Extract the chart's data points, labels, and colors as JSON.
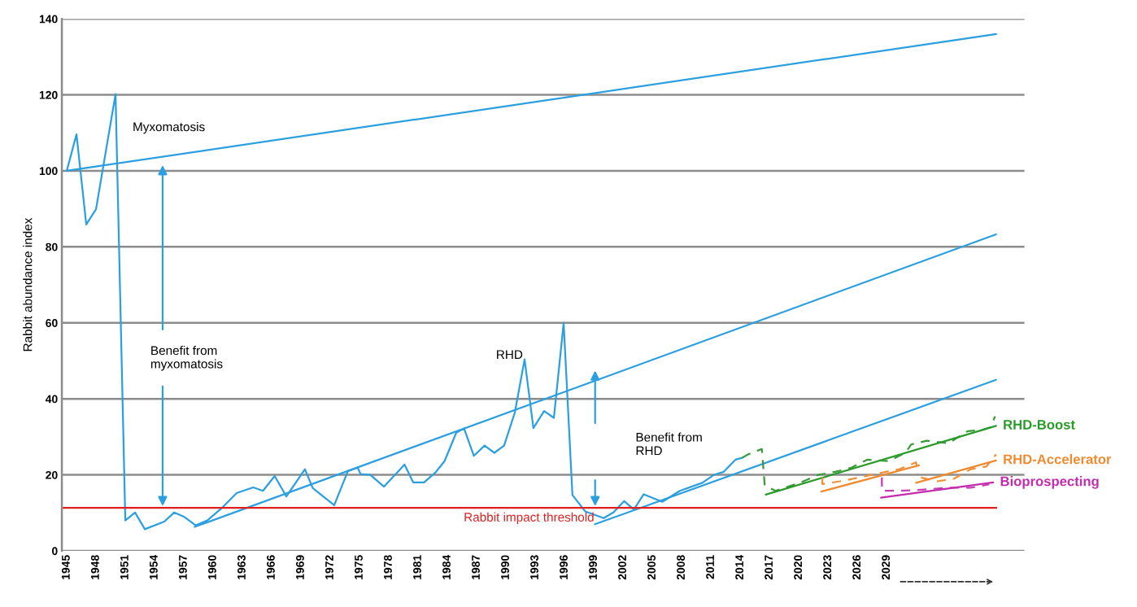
{
  "chart_data": {
    "type": "line",
    "ylabel": "Rabbit abundance index",
    "xlim": [
      1944.5,
      2043.1
    ],
    "ylim": [
      0,
      140
    ],
    "xticks": [
      1945,
      1948,
      1951,
      1954,
      1957,
      1960,
      1963,
      1966,
      1969,
      1972,
      1975,
      1978,
      1981,
      1984,
      1987,
      1990,
      1993,
      1996,
      1999,
      2002,
      2005,
      2008,
      2011,
      2014,
      2017,
      2020,
      2023,
      2026,
      2029
    ],
    "yticks": [
      0,
      20,
      40,
      60,
      80,
      100,
      120,
      140
    ],
    "grid": "y",
    "series": [
      {
        "color": "#2b9fe0",
        "line_style": "solid",
        "x": [
          1945,
          1946,
          1947,
          1948,
          1950,
          1951,
          1952,
          1953,
          1955,
          1956,
          1957,
          1958.2,
          1959.4,
          1960.9,
          1962.4,
          1964.1,
          1965.1,
          1966.3,
          1967.5,
          1969.4,
          1970.2,
          1972.4,
          1973.8,
          1974.8,
          1975.1,
          1976.1,
          1977.5,
          1979.6,
          1980.5,
          1981.6,
          1982.8,
          1983.7,
          1984.9,
          1985.7,
          1986.7,
          1987.8,
          1988.8,
          1989.8,
          1990.9,
          1991.9,
          1992.8,
          1993.9,
          1994.9,
          1995.9,
          1996.8,
          1998.1,
          2000,
          2001,
          2002.1,
          2003.1,
          2004.1,
          2006,
          2007.8,
          2010.1,
          2011.3,
          2012.3,
          2013.5,
          2014.2
        ],
        "values": [
          100,
          109.6,
          85.9,
          89.9,
          120.2,
          8.0,
          10.1,
          5.7,
          7.7,
          10.1,
          9.0,
          6.7,
          8.0,
          11.3,
          15.2,
          16.7,
          15.8,
          19.7,
          14.3,
          21.5,
          16.5,
          12.0,
          21.0,
          21.9,
          20.2,
          20.0,
          16.9,
          22.7,
          18.0,
          18.0,
          20.7,
          23.6,
          31.1,
          32.2,
          25.0,
          27.7,
          25.8,
          27.7,
          36.4,
          50.4,
          32.3,
          36.8,
          35.0,
          60.0,
          14.7,
          10.4,
          8.6,
          10.1,
          13.1,
          10.9,
          14.9,
          12.9,
          15.8,
          17.9,
          20.0,
          20.8,
          24.0,
          24.5
        ]
      },
      {
        "color": "#2b9fe0",
        "line_style": "solid",
        "x": [
          1945,
          2040.2
        ],
        "values": [
          100,
          136
        ]
      },
      {
        "color": "#2b9fe0",
        "line_style": "solid",
        "x": [
          1958.1,
          2040.2
        ],
        "values": [
          6.3,
          83.3
        ]
      },
      {
        "color": "#2b9fe0",
        "line_style": "solid",
        "x": [
          1999.1,
          2040.2
        ],
        "values": [
          7.0,
          45.0
        ]
      },
      {
        "color": "#3a9a3a",
        "line_style": "dashed",
        "x": [
          2014.2,
          2014.8,
          2016.2,
          2016.5,
          2017.6,
          2020.1,
          2022,
          2023.7,
          2025.3,
          2027,
          2029.2,
          2030.9,
          2031.5,
          2033.1,
          2035.3,
          2037.3,
          2038.7,
          2039.6,
          2040.1
        ],
        "values": [
          24.5,
          25.4,
          26.8,
          17.2,
          15.8,
          17.9,
          20.0,
          20.8,
          21.8,
          24.0,
          23.6,
          25.8,
          28.0,
          29.0,
          28.3,
          31.5,
          31.8,
          32.5,
          35.4
        ]
      },
      {
        "name": "RHD-Boost",
        "color": "#2a9a2a",
        "line_style": "solid",
        "x": [
          2016.6,
          2040.2
        ],
        "values": [
          14.8,
          32.9
        ]
      },
      {
        "color": "#f0903a",
        "line_style": "dashed",
        "x": [
          2022.4,
          2022.4,
          2024.2,
          2026.2,
          2028.1,
          2030.3,
          2032,
          2032.2
        ],
        "values": [
          19.3,
          17.6,
          18.3,
          19.3,
          20.4,
          21.5,
          23.3,
          20.4
        ]
      },
      {
        "color": "#f08a30",
        "line_style": "solid",
        "x": [
          2022.3,
          2032.3
        ],
        "values": [
          15.6,
          22.5
        ]
      },
      {
        "color": "#f0903a",
        "line_style": "dashed",
        "x": [
          2032.5,
          2034.2,
          2035.9,
          2037.6,
          2039.2,
          2040.2
        ],
        "values": [
          19.3,
          18.3,
          19.0,
          21.5,
          22.2,
          25.4
        ]
      },
      {
        "name": "RHD-Accelerator",
        "color": "#f08a30",
        "line_style": "solid",
        "x": [
          2032,
          2040.2
        ],
        "values": [
          17.9,
          23.8
        ]
      },
      {
        "color": "#c83cb4",
        "line_style": "dashed",
        "x": [
          2028.5,
          2028.5,
          2030.3,
          2032.6,
          2035.3,
          2037.6,
          2039.5
        ],
        "values": [
          19.3,
          15.8,
          15.8,
          16.1,
          16.6,
          16.6,
          17.5
        ]
      },
      {
        "name": "Bioprospecting",
        "color": "#c42cae",
        "line_style": "solid",
        "x": [
          2028.4,
          2039.9
        ],
        "values": [
          14.0,
          18.0
        ]
      }
    ],
    "ref_lines": [
      {
        "axis": "y",
        "value": 11.3,
        "label": "Rabbit impact threshold",
        "color": "#e02020"
      }
    ],
    "annotations": [
      "Myxomatosis",
      "RHD",
      "Benefit from\nmyxomatosis",
      "Benefit from\nRHD"
    ]
  }
}
